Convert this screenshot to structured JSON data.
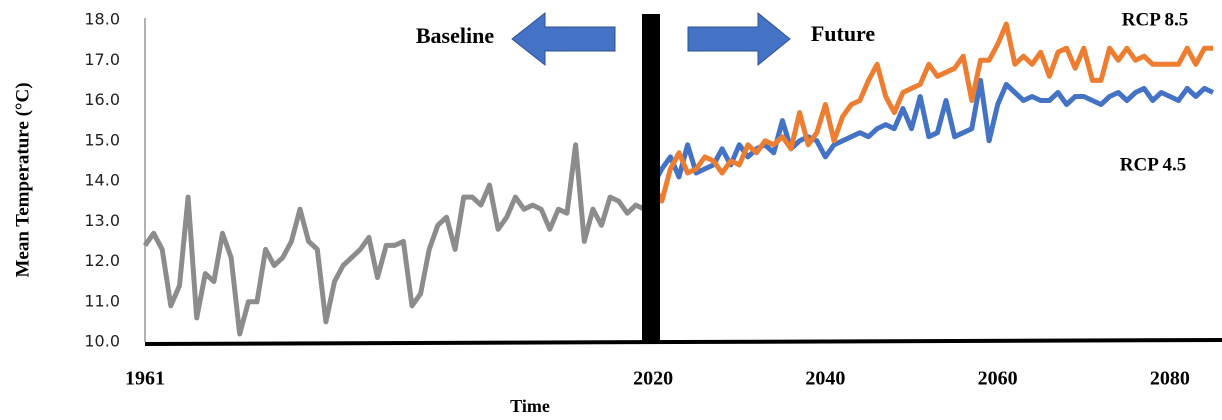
{
  "chart_data": {
    "type": "line",
    "y_label": "Mean Temperature (°C)",
    "x_label": "Time",
    "annotations": [
      "Baseline",
      "Future"
    ],
    "xlim": [
      1961,
      2085
    ],
    "xticks": [
      1961,
      2020,
      2040,
      2060,
      2080
    ],
    "ylim": [
      10,
      18
    ],
    "yticks": [
      {
        "value": 10,
        "label": "10.0"
      },
      {
        "value": 11,
        "label": "11.0"
      },
      {
        "value": 12,
        "label": "12.0"
      },
      {
        "value": 13,
        "label": "13.0"
      },
      {
        "value": 14,
        "label": "14.0"
      },
      {
        "value": 15,
        "label": "15.0"
      },
      {
        "value": 16,
        "label": "16.0"
      },
      {
        "value": 17,
        "label": "17.0"
      },
      {
        "value": 18,
        "label": "18.0"
      }
    ],
    "series": [
      {
        "color": "#8c8c8c",
        "x": [
          1961,
          1962,
          1963,
          1964,
          1965,
          1966,
          1967,
          1968,
          1969,
          1970,
          1971,
          1972,
          1973,
          1974,
          1975,
          1976,
          1977,
          1978,
          1979,
          1980,
          1981,
          1982,
          1983,
          1984,
          1985,
          1986,
          1987,
          1988,
          1989,
          1990,
          1991,
          1992,
          1993,
          1994,
          1995,
          1996,
          1997,
          1998,
          1999,
          2000,
          2001,
          2002,
          2003,
          2004,
          2005,
          2006,
          2007,
          2008,
          2009,
          2010,
          2011,
          2012,
          2013,
          2014,
          2015,
          2016,
          2017,
          2018,
          2019
        ],
        "values": [
          12.4,
          12.7,
          12.3,
          10.9,
          11.4,
          13.6,
          10.6,
          11.7,
          11.5,
          12.7,
          12.1,
          10.2,
          11.0,
          11.0,
          12.3,
          11.9,
          12.1,
          12.5,
          13.3,
          12.5,
          12.3,
          10.5,
          11.5,
          11.9,
          12.1,
          12.3,
          12.6,
          11.6,
          12.4,
          12.4,
          12.5,
          10.9,
          11.2,
          12.3,
          12.9,
          13.1,
          12.3,
          13.6,
          13.6,
          13.4,
          13.9,
          12.8,
          13.1,
          13.6,
          13.3,
          13.4,
          13.3,
          12.8,
          13.3,
          13.2,
          14.9,
          12.5,
          13.3,
          12.9,
          13.6,
          13.5,
          13.2,
          13.4,
          13.3
        ]
      },
      {
        "name": "RCP 4.5",
        "color": "#4472c4",
        "x": [
          2019,
          2020,
          2021,
          2022,
          2023,
          2024,
          2025,
          2026,
          2027,
          2028,
          2029,
          2030,
          2031,
          2032,
          2033,
          2034,
          2035,
          2036,
          2037,
          2038,
          2039,
          2040,
          2041,
          2042,
          2043,
          2044,
          2045,
          2046,
          2047,
          2048,
          2049,
          2050,
          2051,
          2052,
          2053,
          2054,
          2055,
          2056,
          2057,
          2058,
          2059,
          2060,
          2061,
          2062,
          2063,
          2064,
          2065,
          2066,
          2067,
          2068,
          2069,
          2070,
          2071,
          2072,
          2073,
          2074,
          2075,
          2076,
          2077,
          2078,
          2079,
          2080,
          2081,
          2082,
          2083,
          2084,
          2085
        ],
        "values": [
          13.7,
          13.9,
          14.3,
          14.6,
          14.1,
          14.9,
          14.2,
          14.3,
          14.4,
          14.8,
          14.4,
          14.9,
          14.6,
          14.8,
          14.9,
          14.7,
          15.5,
          14.8,
          15.0,
          15.1,
          15.0,
          14.6,
          14.9,
          15.0,
          15.1,
          15.2,
          15.1,
          15.3,
          15.4,
          15.3,
          15.8,
          15.3,
          16.1,
          15.1,
          15.2,
          16.0,
          15.1,
          15.2,
          15.3,
          16.5,
          15.0,
          15.9,
          16.4,
          16.2,
          16.0,
          16.1,
          16.0,
          16.0,
          16.2,
          15.9,
          16.1,
          16.1,
          16.0,
          15.9,
          16.1,
          16.2,
          16.0,
          16.2,
          16.3,
          16.0,
          16.2,
          16.1,
          16.0,
          16.3,
          16.1,
          16.3,
          16.2
        ]
      },
      {
        "name": "RCP 8.5",
        "color": "#ed7d31",
        "x": [
          2019,
          2020,
          2021,
          2022,
          2023,
          2024,
          2025,
          2026,
          2027,
          2028,
          2029,
          2030,
          2031,
          2032,
          2033,
          2034,
          2035,
          2036,
          2037,
          2038,
          2039,
          2040,
          2041,
          2042,
          2043,
          2044,
          2045,
          2046,
          2047,
          2048,
          2049,
          2050,
          2051,
          2052,
          2053,
          2054,
          2055,
          2056,
          2057,
          2058,
          2059,
          2060,
          2061,
          2062,
          2063,
          2064,
          2065,
          2066,
          2067,
          2068,
          2069,
          2070,
          2071,
          2072,
          2073,
          2074,
          2075,
          2076,
          2077,
          2078,
          2079,
          2080,
          2081,
          2082,
          2083,
          2084,
          2085
        ],
        "values": [
          13.7,
          13.9,
          13.5,
          14.3,
          14.7,
          14.2,
          14.3,
          14.6,
          14.5,
          14.2,
          14.5,
          14.4,
          14.9,
          14.7,
          15.0,
          14.9,
          15.1,
          14.8,
          15.7,
          14.9,
          15.2,
          15.9,
          15.0,
          15.6,
          15.9,
          16.0,
          16.5,
          16.9,
          16.1,
          15.7,
          16.2,
          16.3,
          16.4,
          16.9,
          16.6,
          16.7,
          16.8,
          17.1,
          16.0,
          17.0,
          17.0,
          17.4,
          17.9,
          16.9,
          17.1,
          16.9,
          17.2,
          16.6,
          17.2,
          17.3,
          16.8,
          17.3,
          16.5,
          16.5,
          17.3,
          17.0,
          17.3,
          17.0,
          17.1,
          16.9,
          16.9,
          16.9,
          16.9,
          17.3,
          16.9,
          17.3,
          17.3
        ]
      }
    ]
  }
}
